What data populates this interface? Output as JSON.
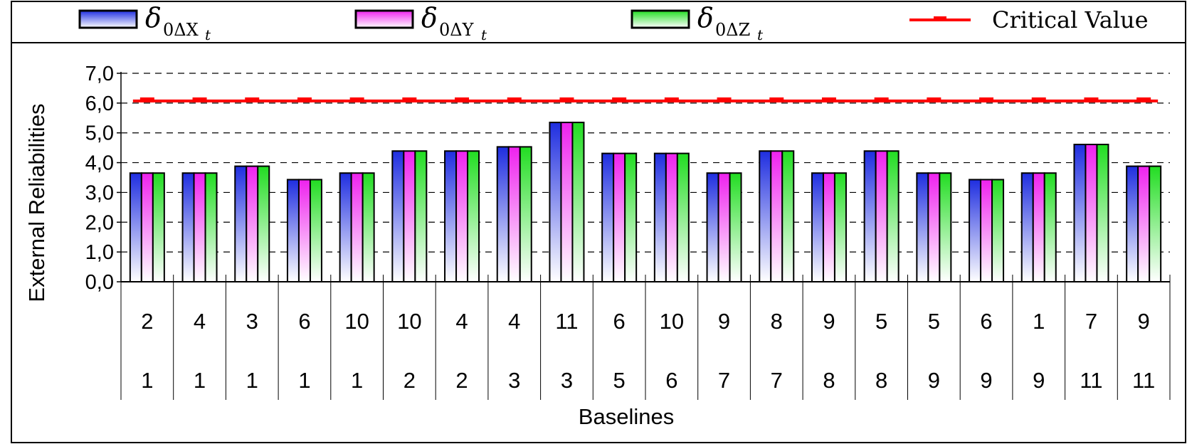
{
  "chart_data": {
    "type": "bar",
    "xlabel": "Baselines",
    "ylabel": "External Reliabilities",
    "ylim": [
      0,
      7
    ],
    "yticks": [
      0,
      1,
      2,
      3,
      4,
      5,
      6,
      7
    ],
    "ytick_labels": [
      "0,0",
      "1,0",
      "2,0",
      "3,0",
      "4,0",
      "5,0",
      "6,0",
      "7,0"
    ],
    "grid": "horizontal dashed",
    "legend_position": "top",
    "categories": [
      {
        "top": "2",
        "bottom": "1"
      },
      {
        "top": "4",
        "bottom": "1"
      },
      {
        "top": "3",
        "bottom": "1"
      },
      {
        "top": "6",
        "bottom": "1"
      },
      {
        "top": "10",
        "bottom": "1"
      },
      {
        "top": "10",
        "bottom": "2"
      },
      {
        "top": "4",
        "bottom": "2"
      },
      {
        "top": "4",
        "bottom": "3"
      },
      {
        "top": "11",
        "bottom": "3"
      },
      {
        "top": "6",
        "bottom": "5"
      },
      {
        "top": "10",
        "bottom": "6"
      },
      {
        "top": "9",
        "bottom": "7"
      },
      {
        "top": "8",
        "bottom": "7"
      },
      {
        "top": "9",
        "bottom": "8"
      },
      {
        "top": "5",
        "bottom": "8"
      },
      {
        "top": "5",
        "bottom": "9"
      },
      {
        "top": "6",
        "bottom": "9"
      },
      {
        "top": "1",
        "bottom": "9"
      },
      {
        "top": "7",
        "bottom": "11"
      },
      {
        "top": "9",
        "bottom": "11"
      }
    ],
    "series": [
      {
        "legend_symbol": "δ",
        "legend_subscript": "0ΔX",
        "legend_sub_subscript": "t",
        "color_top": "#1f2ee0",
        "color_bottom": "#ffffff",
        "values": [
          3.65,
          3.65,
          3.88,
          3.43,
          3.65,
          4.39,
          4.39,
          4.53,
          5.35,
          4.31,
          4.31,
          3.65,
          4.39,
          3.65,
          4.39,
          3.65,
          3.43,
          3.65,
          4.61,
          3.88
        ]
      },
      {
        "legend_symbol": "δ",
        "legend_subscript": "0ΔY",
        "legend_sub_subscript": "t",
        "color_top": "#ee22ee",
        "color_bottom": "#ffffff",
        "values": [
          3.65,
          3.65,
          3.88,
          3.43,
          3.65,
          4.39,
          4.39,
          4.53,
          5.35,
          4.31,
          4.31,
          3.65,
          4.39,
          3.65,
          4.39,
          3.65,
          3.43,
          3.65,
          4.61,
          3.88
        ]
      },
      {
        "legend_symbol": "δ",
        "legend_subscript": "0ΔZ",
        "legend_sub_subscript": "t",
        "color_top": "#22dd22",
        "color_bottom": "#ffffff",
        "values": [
          3.65,
          3.65,
          3.88,
          3.43,
          3.65,
          4.39,
          4.39,
          4.53,
          5.35,
          4.31,
          4.31,
          3.65,
          4.39,
          3.65,
          4.39,
          3.65,
          3.43,
          3.65,
          4.61,
          3.88
        ]
      }
    ],
    "reference_line": {
      "name": "Critical Value",
      "value": 6.07,
      "color": "#ff0000"
    }
  }
}
